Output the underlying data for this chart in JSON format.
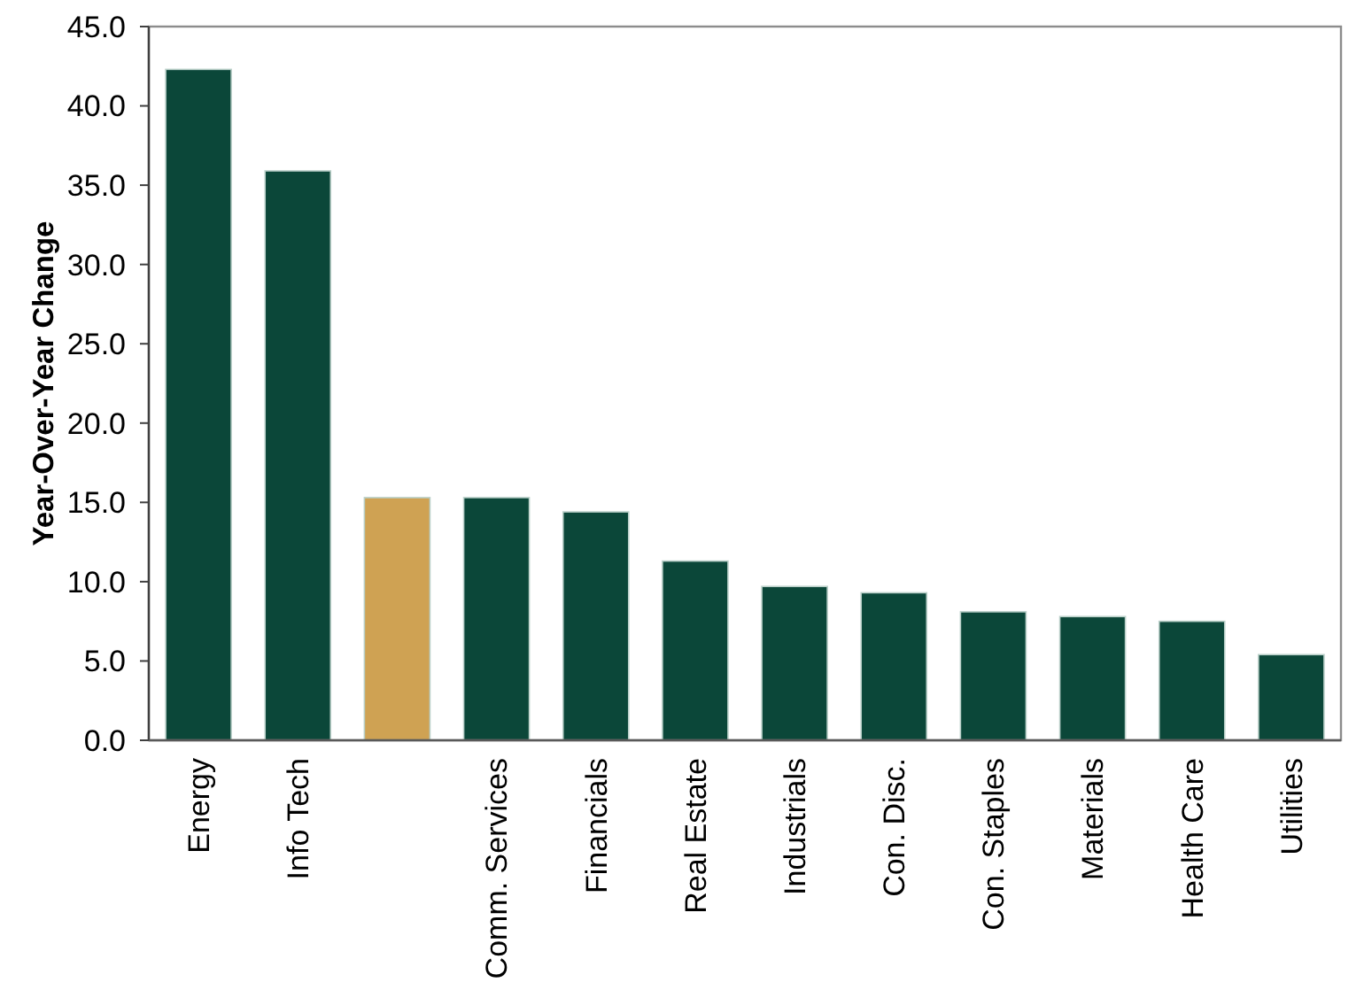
{
  "chart_data": {
    "type": "bar",
    "ylabel": "Year-Over-Year Change",
    "categories": [
      "Energy",
      "Info Tech",
      null,
      "Comm. Services",
      "Financials",
      "Real Estate",
      "Industrials",
      "Con. Disc.",
      "Con. Staples",
      "Materials",
      "Health Care",
      "Utilities"
    ],
    "values": [
      42.3,
      35.9,
      15.3,
      15.3,
      14.4,
      11.3,
      9.7,
      9.3,
      8.1,
      7.8,
      7.5,
      5.4
    ],
    "colors": [
      "#0b4739",
      "#0b4739",
      "#cfa253",
      "#0b4739",
      "#0b4739",
      "#0b4739",
      "#0b4739",
      "#0b4739",
      "#0b4739",
      "#0b4739",
      "#0b4739",
      "#0b4739"
    ],
    "ylim": [
      0,
      45
    ],
    "yticks": [
      {
        "value": 0,
        "label": "0.0"
      },
      {
        "value": 5,
        "label": "5.0"
      },
      {
        "value": 10,
        "label": "10.0"
      },
      {
        "value": 15,
        "label": "15.0"
      },
      {
        "value": 20,
        "label": "20.0"
      },
      {
        "value": 25,
        "label": "25.0"
      },
      {
        "value": 30,
        "label": "30.0"
      },
      {
        "value": 35,
        "label": "35.0"
      },
      {
        "value": 40,
        "label": "40.0"
      },
      {
        "value": 45,
        "label": "45.0"
      }
    ],
    "grid": false
  }
}
